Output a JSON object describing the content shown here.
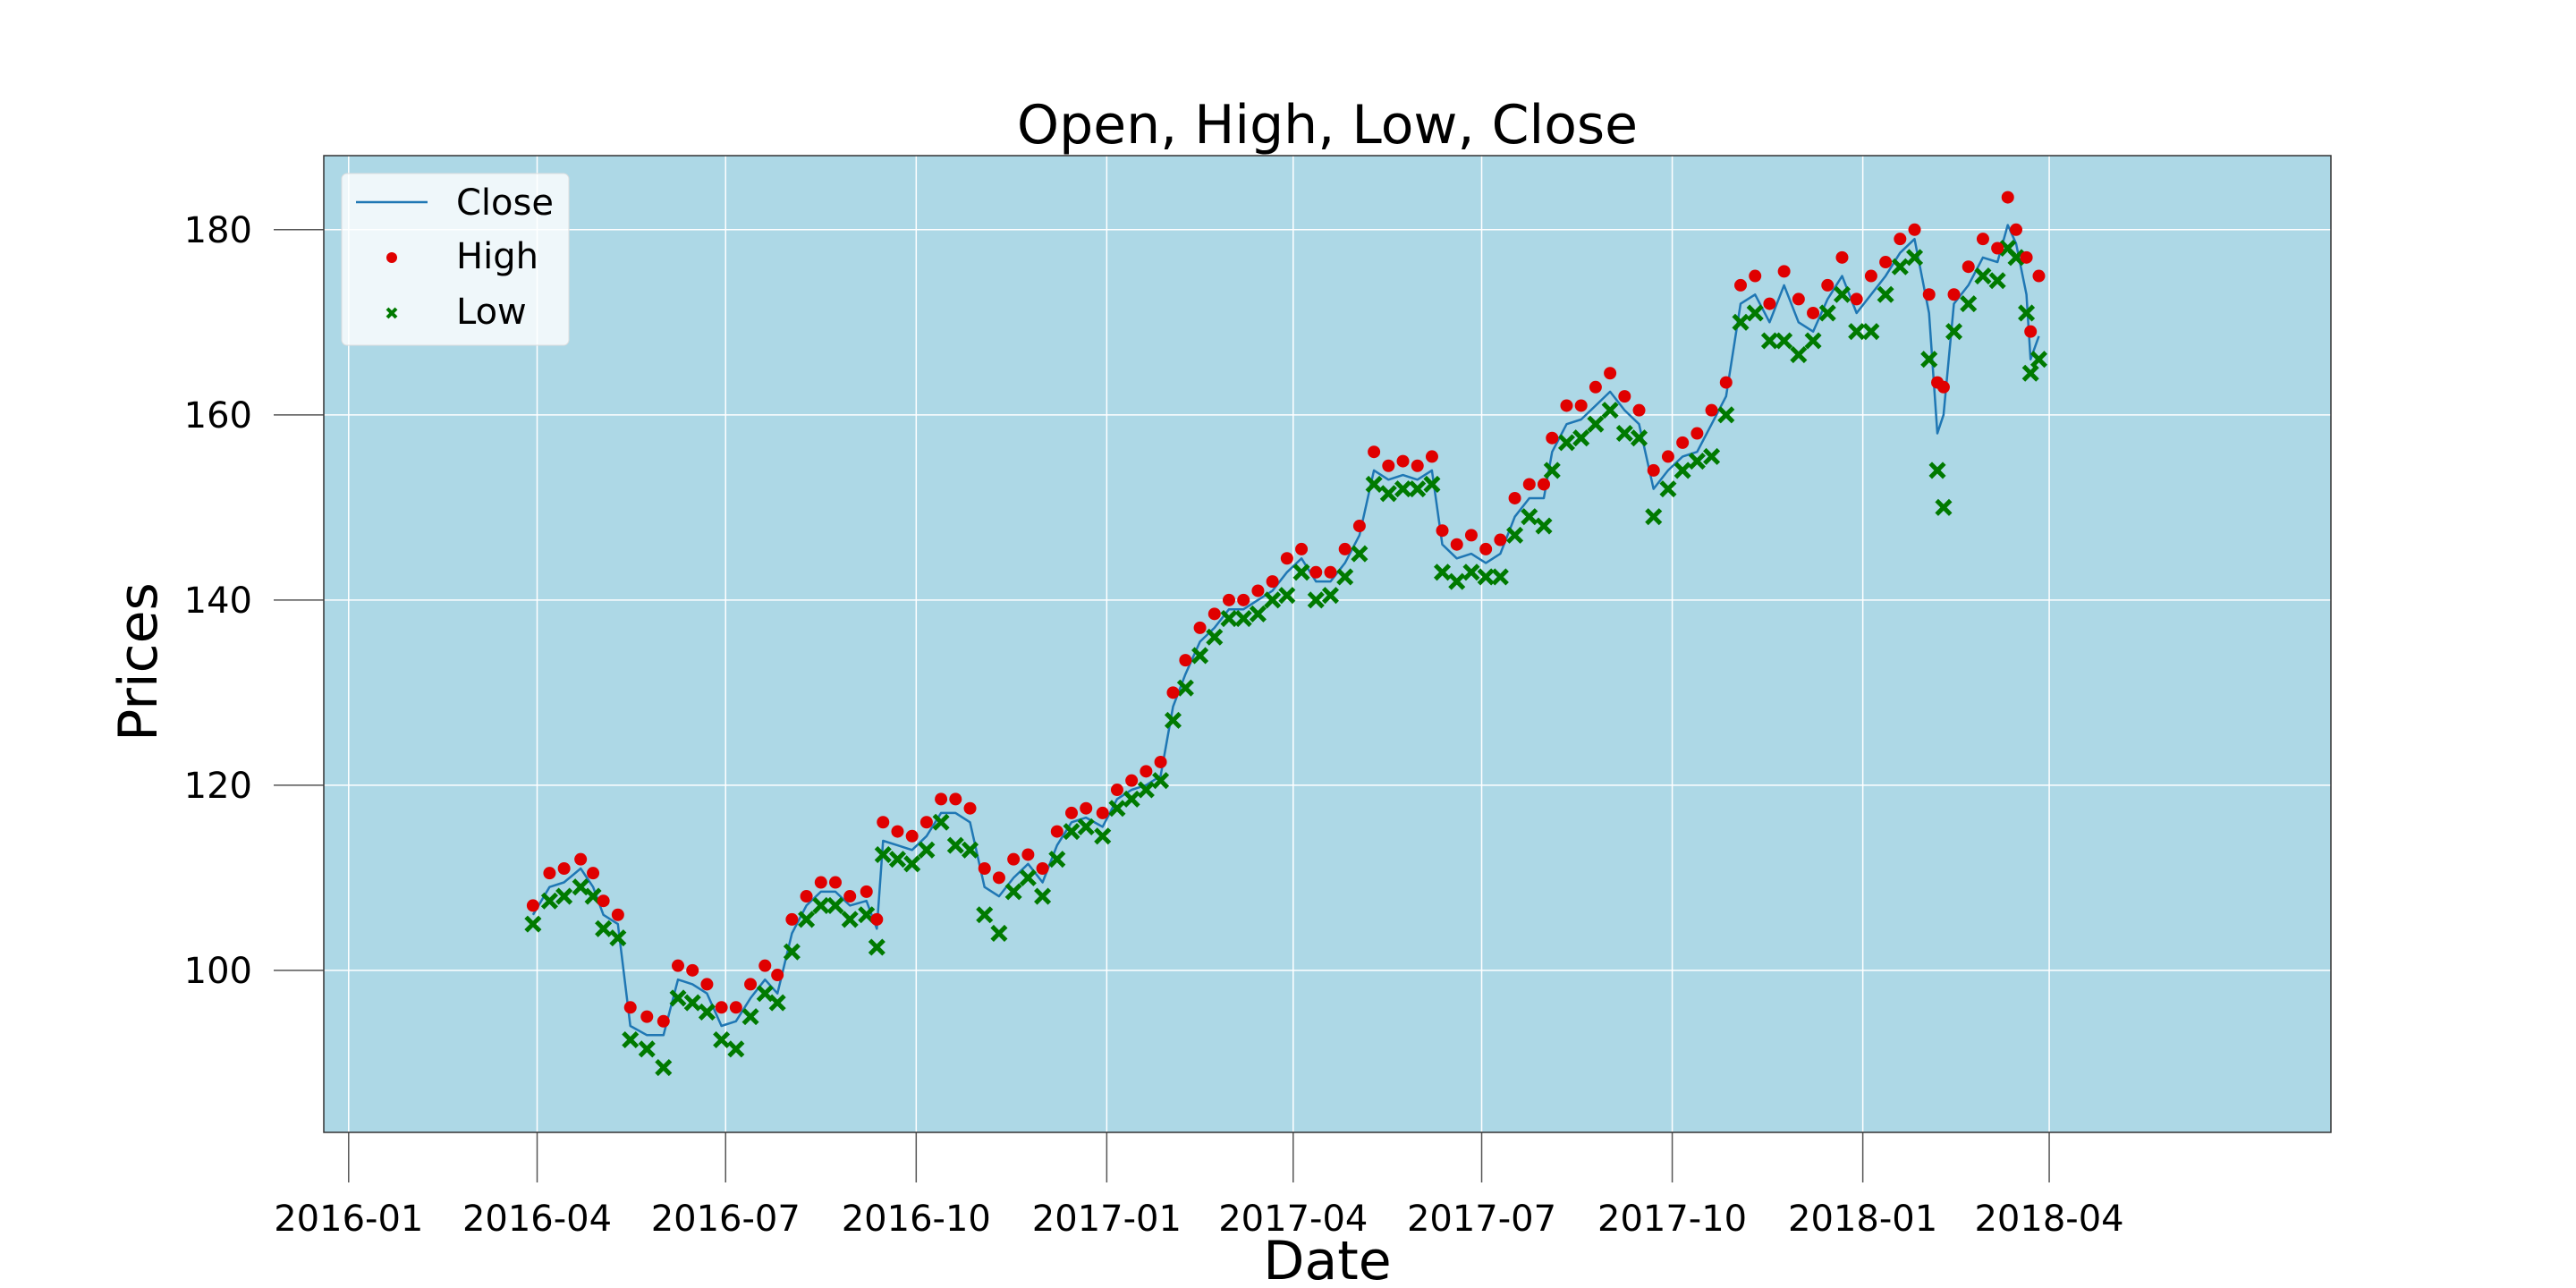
{
  "chart_data": {
    "type": "line",
    "title": "Open, High, Low, Close",
    "xlabel": "Date",
    "ylabel": "Prices",
    "x_axis": "date",
    "xlim": [
      "2015-12-20",
      "2018-08-15"
    ],
    "ylim": [
      82.5,
      188
    ],
    "xticks": [
      "2016-01",
      "2016-04",
      "2016-07",
      "2016-10",
      "2017-01",
      "2017-04",
      "2017-07",
      "2017-10",
      "2018-01",
      "2018-04"
    ],
    "yticks": [
      100,
      120,
      140,
      160,
      180
    ],
    "grid": true,
    "legend": {
      "position": "top-left",
      "entries": [
        "Close",
        "High",
        "Low"
      ]
    },
    "colors": {
      "background": "#add8e6",
      "close": "#1f77b4",
      "high": "#e00000",
      "low": "#007a00",
      "grid": "#ffffff"
    },
    "x": [
      "2016-03-30",
      "2016-04-07",
      "2016-04-14",
      "2016-04-22",
      "2016-04-28",
      "2016-05-03",
      "2016-05-10",
      "2016-05-16",
      "2016-05-24",
      "2016-06-01",
      "2016-06-08",
      "2016-06-15",
      "2016-06-22",
      "2016-06-29",
      "2016-07-06",
      "2016-07-13",
      "2016-07-20",
      "2016-07-26",
      "2016-08-02",
      "2016-08-09",
      "2016-08-16",
      "2016-08-23",
      "2016-08-30",
      "2016-09-07",
      "2016-09-12",
      "2016-09-15",
      "2016-09-22",
      "2016-09-29",
      "2016-10-06",
      "2016-10-13",
      "2016-10-20",
      "2016-10-27",
      "2016-11-03",
      "2016-11-10",
      "2016-11-17",
      "2016-11-24",
      "2016-12-01",
      "2016-12-08",
      "2016-12-15",
      "2016-12-22",
      "2016-12-30",
      "2017-01-06",
      "2017-01-13",
      "2017-01-20",
      "2017-01-27",
      "2017-02-02",
      "2017-02-08",
      "2017-02-15",
      "2017-02-22",
      "2017-03-01",
      "2017-03-08",
      "2017-03-15",
      "2017-03-22",
      "2017-03-29",
      "2017-04-05",
      "2017-04-12",
      "2017-04-19",
      "2017-04-26",
      "2017-05-03",
      "2017-05-10",
      "2017-05-17",
      "2017-05-24",
      "2017-05-31",
      "2017-06-07",
      "2017-06-12",
      "2017-06-19",
      "2017-06-26",
      "2017-07-03",
      "2017-07-10",
      "2017-07-17",
      "2017-07-24",
      "2017-07-31",
      "2017-08-04",
      "2017-08-11",
      "2017-08-18",
      "2017-08-25",
      "2017-09-01",
      "2017-09-08",
      "2017-09-15",
      "2017-09-22",
      "2017-09-29",
      "2017-10-06",
      "2017-10-13",
      "2017-10-20",
      "2017-10-27",
      "2017-11-03",
      "2017-11-10",
      "2017-11-17",
      "2017-11-24",
      "2017-12-01",
      "2017-12-08",
      "2017-12-15",
      "2017-12-22",
      "2017-12-29",
      "2018-01-05",
      "2018-01-12",
      "2018-01-19",
      "2018-01-26",
      "2018-02-02",
      "2018-02-06",
      "2018-02-09",
      "2018-02-14",
      "2018-02-21",
      "2018-02-28",
      "2018-03-07",
      "2018-03-12",
      "2018-03-16",
      "2018-03-21",
      "2018-03-23",
      "2018-03-27"
    ],
    "series": [
      {
        "name": "Close",
        "values": [
          106,
          109,
          109.5,
          111,
          109,
          106,
          105,
          94,
          93,
          93,
          99,
          98.5,
          97.5,
          94,
          94.5,
          97,
          99,
          97.5,
          104,
          107,
          108.5,
          108.5,
          107,
          107.5,
          104.5,
          114,
          113.5,
          113,
          114.5,
          117,
          117,
          116,
          109,
          108,
          110,
          111.5,
          109.5,
          113.5,
          116,
          116.5,
          115.5,
          118.5,
          119.5,
          120,
          121,
          128.5,
          132,
          135.5,
          137,
          139,
          139,
          140,
          141,
          143,
          144.5,
          142,
          142,
          144,
          147,
          154,
          153,
          153.5,
          153,
          154,
          146,
          144.5,
          145,
          144,
          145,
          149,
          151,
          151,
          156,
          159,
          159.5,
          161,
          162.5,
          160.5,
          159,
          152,
          154,
          155.5,
          156,
          159,
          162,
          172,
          173,
          170,
          174,
          170,
          169,
          172.5,
          175,
          171,
          173,
          175,
          177.5,
          179,
          171,
          158,
          160,
          172,
          174,
          177,
          176.5,
          180.5,
          178.5,
          173,
          166,
          168.5
        ]
      },
      {
        "name": "High",
        "values": [
          107,
          110.5,
          111,
          112,
          110.5,
          107.5,
          106,
          96,
          95,
          94.5,
          100.5,
          100,
          98.5,
          96,
          96,
          98.5,
          100.5,
          99.5,
          105.5,
          108,
          109.5,
          109.5,
          108,
          108.5,
          105.5,
          116,
          115,
          114.5,
          116,
          118.5,
          118.5,
          117.5,
          111,
          110,
          112,
          112.5,
          111,
          115,
          117,
          117.5,
          117,
          119.5,
          120.5,
          121.5,
          122.5,
          130,
          133.5,
          137,
          138.5,
          140,
          140,
          141,
          142,
          144.5,
          145.5,
          143,
          143,
          145.5,
          148,
          156,
          154.5,
          155,
          154.5,
          155.5,
          147.5,
          146,
          147,
          145.5,
          146.5,
          151,
          152.5,
          152.5,
          157.5,
          161,
          161,
          163,
          164.5,
          162,
          160.5,
          154,
          155.5,
          157,
          158,
          160.5,
          163.5,
          174,
          175,
          172,
          175.5,
          172.5,
          171,
          174,
          177,
          172.5,
          175,
          176.5,
          179,
          180,
          173,
          163.5,
          163,
          173,
          176,
          179,
          178,
          183.5,
          180,
          177,
          169,
          175
        ]
      },
      {
        "name": "Low",
        "values": [
          105,
          107.5,
          108,
          109,
          108,
          104.5,
          103.5,
          92.5,
          91.5,
          89.5,
          97,
          96.5,
          95.5,
          92.5,
          91.5,
          95,
          97.5,
          96.5,
          102,
          105.5,
          107,
          107,
          105.5,
          106,
          102.5,
          112.5,
          112,
          111.5,
          113,
          116,
          113.5,
          113,
          106,
          104,
          108.5,
          110,
          108,
          112,
          115,
          115.5,
          114.5,
          117.5,
          118.5,
          119.5,
          120.5,
          127,
          130.5,
          134,
          136,
          138,
          138,
          138.5,
          140,
          140.5,
          143,
          140,
          140.5,
          142.5,
          145,
          152.5,
          151.5,
          152,
          152,
          152.5,
          143,
          142,
          143,
          142.5,
          142.5,
          147,
          149,
          148,
          154,
          157,
          157.5,
          159,
          160.5,
          158,
          157.5,
          149,
          152,
          154,
          155,
          155.5,
          160,
          170,
          171,
          168,
          168,
          166.5,
          168,
          171,
          173,
          169,
          169,
          173,
          176,
          177,
          166,
          154,
          150,
          169,
          172,
          175,
          174.5,
          178,
          177,
          171,
          164.5,
          166
        ]
      }
    ]
  }
}
